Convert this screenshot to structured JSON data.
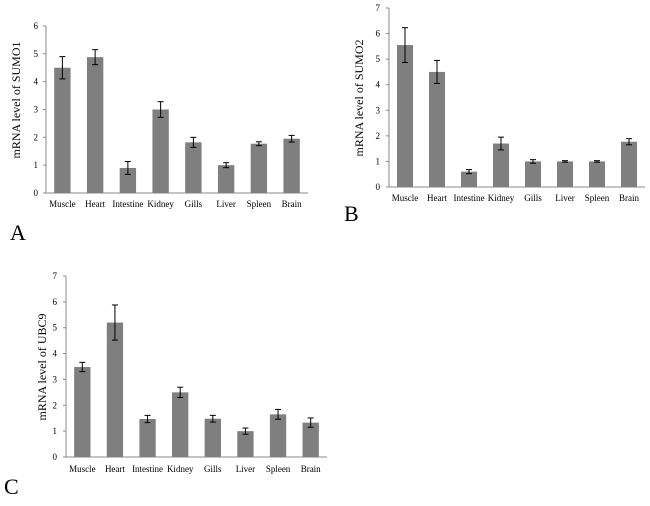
{
  "chart_data": [
    {
      "type": "bar",
      "panel_label": "A",
      "ylabel": "mRNA level of SUMO1",
      "categories": [
        "Muscle",
        "Heart",
        "Intestine",
        "Kidney",
        "Gills",
        "Liver",
        "Spleen",
        "Brain"
      ],
      "values": [
        4.5,
        4.88,
        0.9,
        3.0,
        1.82,
        1.0,
        1.77,
        1.95
      ],
      "errors": [
        0.4,
        0.27,
        0.23,
        0.28,
        0.18,
        0.09,
        0.07,
        0.12
      ],
      "ylim": [
        0,
        6
      ],
      "yticks": [
        "0",
        "1",
        "2",
        "3",
        "4",
        "5",
        "6"
      ],
      "color": "#7f7f7f"
    },
    {
      "type": "bar",
      "panel_label": "B",
      "ylabel": "mRNA level of SUMO2",
      "categories": [
        "Muscle",
        "Heart",
        "Intestine",
        "Kidney",
        "Gills",
        "Liver",
        "Spleen",
        "Brain"
      ],
      "values": [
        5.55,
        4.5,
        0.6,
        1.7,
        1.0,
        1.0,
        1.0,
        1.77
      ],
      "errors": [
        0.68,
        0.45,
        0.08,
        0.25,
        0.07,
        0.03,
        0.03,
        0.12
      ],
      "ylim": [
        0,
        7
      ],
      "yticks": [
        "0",
        "1",
        "2",
        "3",
        "4",
        "5",
        "6",
        "7"
      ],
      "color": "#7f7f7f"
    },
    {
      "type": "bar",
      "panel_label": "C",
      "ylabel": "mRNA level of UBC9",
      "categories": [
        "Muscle",
        "Heart",
        "Intestine",
        "Kidney",
        "Gills",
        "Liver",
        "Spleen",
        "Brain"
      ],
      "values": [
        3.48,
        5.2,
        1.47,
        2.5,
        1.48,
        1.0,
        1.65,
        1.33
      ],
      "errors": [
        0.18,
        0.68,
        0.14,
        0.2,
        0.13,
        0.12,
        0.19,
        0.18
      ],
      "ylim": [
        0,
        7
      ],
      "yticks": [
        "0",
        "1",
        "2",
        "3",
        "4",
        "5",
        "6",
        "7"
      ],
      "color": "#7f7f7f"
    }
  ]
}
